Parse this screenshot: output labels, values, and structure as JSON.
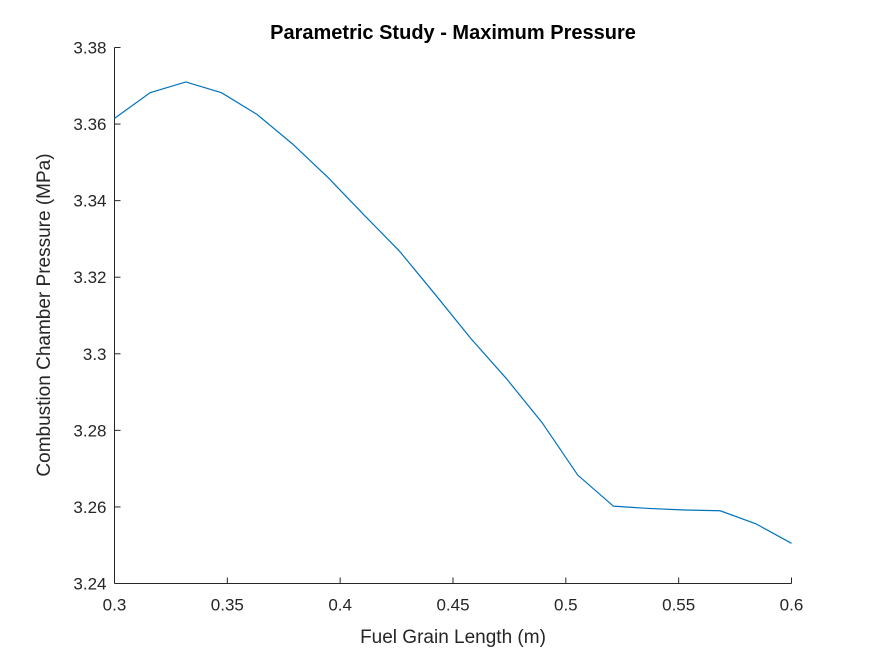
{
  "chart_data": {
    "type": "line",
    "title": "Parametric Study - Maximum Pressure",
    "xlabel": "Fuel Grain Length (m)",
    "ylabel": "Combustion Chamber Pressure (MPa)",
    "xlim": [
      0.3,
      0.6
    ],
    "ylim": [
      3.24,
      3.38
    ],
    "xticks": [
      0.3,
      0.35,
      0.4,
      0.45,
      0.5,
      0.55,
      0.6
    ],
    "xtick_labels": [
      "0.3",
      "0.35",
      "0.4",
      "0.45",
      "0.5",
      "0.55",
      "0.6"
    ],
    "yticks": [
      3.24,
      3.26,
      3.28,
      3.3,
      3.32,
      3.34,
      3.36,
      3.38
    ],
    "ytick_labels": [
      "3.24",
      "3.26",
      "3.28",
      "3.3",
      "3.32",
      "3.34",
      "3.36",
      "3.38"
    ],
    "grid": false,
    "legend": "none",
    "color": "#0072BD",
    "series": [
      {
        "x": [
          0.3,
          0.3158,
          0.3316,
          0.3474,
          0.3632,
          0.3789,
          0.3947,
          0.4105,
          0.4263,
          0.4421,
          0.4579,
          0.4737,
          0.4895,
          0.5053,
          0.5211,
          0.5368,
          0.5526,
          0.5684,
          0.5842,
          0.6
        ],
        "y": [
          3.3615,
          3.3682,
          3.371,
          3.3682,
          3.3625,
          3.3548,
          3.346,
          3.3363,
          3.3268,
          3.3155,
          3.304,
          3.2935,
          3.282,
          3.2683,
          3.2602,
          3.2596,
          3.2592,
          3.259,
          3.2556,
          3.2505
        ]
      }
    ]
  }
}
